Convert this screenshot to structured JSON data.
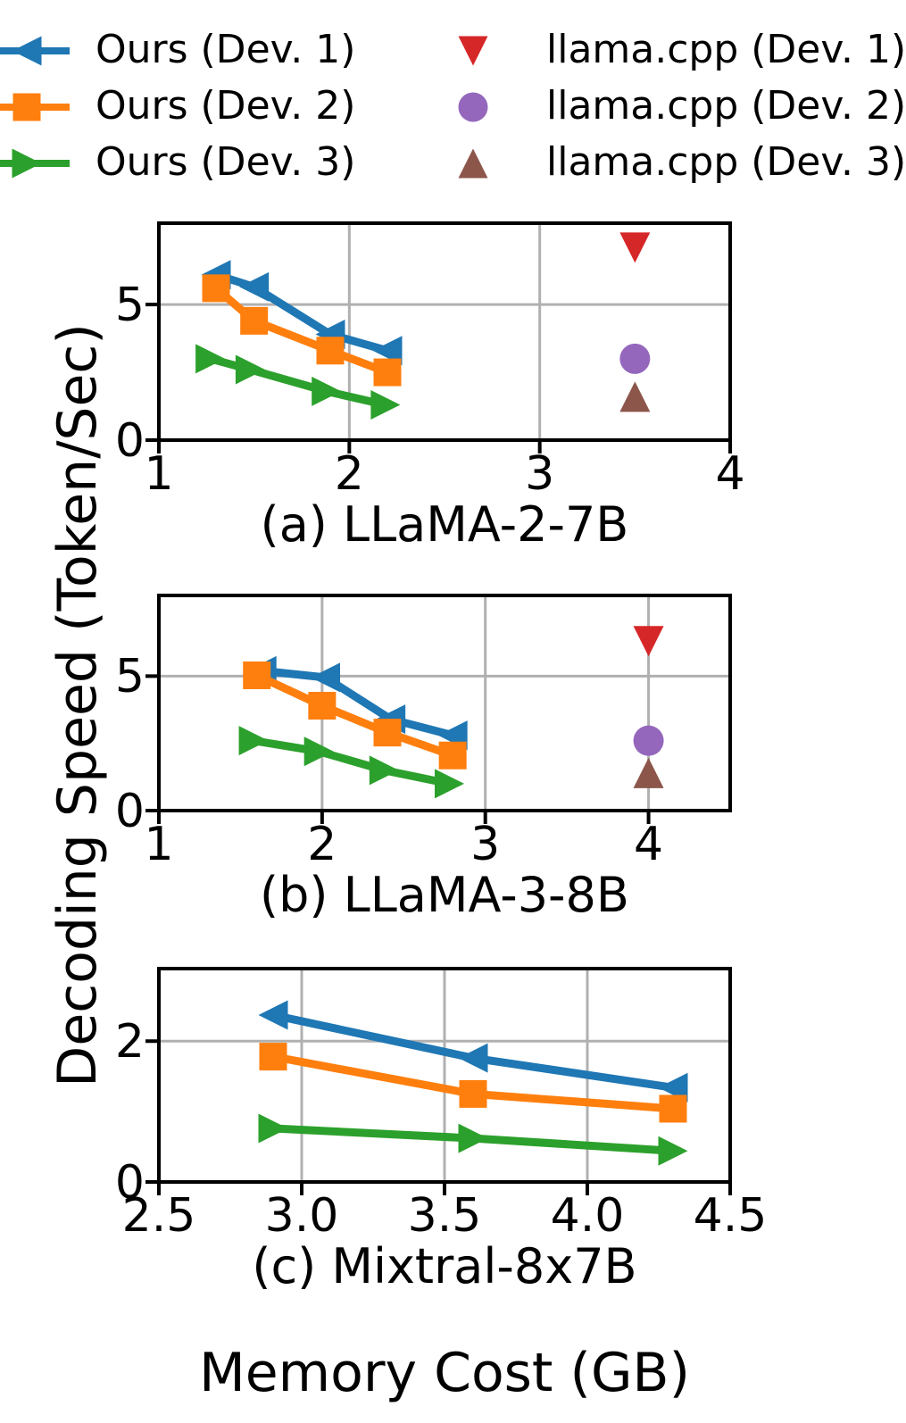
{
  "colors": {
    "blue": "#1f77b4",
    "orange": "#ff7f0e",
    "green": "#2ca02c",
    "red": "#d62728",
    "purple": "#9467bd",
    "brown": "#8c564b",
    "grid": "#b0b0b0",
    "axis": "#000000"
  },
  "legend": {
    "ours": [
      {
        "label": "Ours (Dev. 1)",
        "color": "#1f77b4",
        "marker": "triangle-left"
      },
      {
        "label": "Ours (Dev. 2)",
        "color": "#ff7f0e",
        "marker": "square"
      },
      {
        "label": "Ours (Dev. 3)",
        "color": "#2ca02c",
        "marker": "triangle-right"
      }
    ],
    "llamacpp": [
      {
        "label": "llama.cpp (Dev. 1)",
        "color": "#d62728",
        "marker": "triangle-down"
      },
      {
        "label": "llama.cpp (Dev. 2)",
        "color": "#9467bd",
        "marker": "circle"
      },
      {
        "label": "llama.cpp (Dev. 3)",
        "color": "#8c564b",
        "marker": "triangle-up"
      }
    ]
  },
  "ylabel": "Decoding Speed (Token/Sec)",
  "xlabel": "Memory Cost (GB)",
  "chart_data": [
    {
      "type": "line",
      "title": "(a) LLaMA-2-7B",
      "xlabel": "Memory Cost (GB)",
      "ylabel": "Decoding Speed (Token/Sec)",
      "xlim": [
        1,
        4
      ],
      "ylim": [
        0,
        8
      ],
      "xticks": [
        1,
        2,
        3,
        4
      ],
      "xtick_labels": [
        "1",
        "2",
        "3",
        "4"
      ],
      "yticks": [
        0,
        5
      ],
      "ytick_labels": [
        "0",
        "5"
      ],
      "grid_x": [
        2,
        3
      ],
      "grid_y": [
        5
      ],
      "grid": true,
      "series": [
        {
          "name": "Ours (Dev. 1)",
          "color": "#1f77b4",
          "marker": "triangle-left",
          "points": [
            [
              1.3,
              6.1
            ],
            [
              1.5,
              5.65
            ],
            [
              1.9,
              3.9
            ],
            [
              2.2,
              3.3
            ]
          ]
        },
        {
          "name": "Ours (Dev. 2)",
          "color": "#ff7f0e",
          "marker": "square",
          "points": [
            [
              1.3,
              5.6
            ],
            [
              1.5,
              4.4
            ],
            [
              1.9,
              3.3
            ],
            [
              2.2,
              2.5
            ]
          ]
        },
        {
          "name": "Ours (Dev. 3)",
          "color": "#2ca02c",
          "marker": "triangle-right",
          "points": [
            [
              1.27,
              3.0
            ],
            [
              1.48,
              2.6
            ],
            [
              1.88,
              1.8
            ],
            [
              2.19,
              1.3
            ]
          ]
        }
      ],
      "scatter": [
        {
          "name": "llama.cpp (Dev. 1)",
          "color": "#d62728",
          "marker": "triangle-down",
          "point": [
            3.5,
            7.1
          ]
        },
        {
          "name": "llama.cpp (Dev. 2)",
          "color": "#9467bd",
          "marker": "circle",
          "point": [
            3.5,
            3.0
          ]
        },
        {
          "name": "llama.cpp (Dev. 3)",
          "color": "#8c564b",
          "marker": "triangle-up",
          "point": [
            3.5,
            1.6
          ]
        }
      ]
    },
    {
      "type": "line",
      "title": "(b) LLaMA-3-8B",
      "xlabel": "Memory Cost (GB)",
      "ylabel": "Decoding Speed (Token/Sec)",
      "xlim": [
        1,
        4.5
      ],
      "ylim": [
        0,
        8
      ],
      "xticks": [
        1,
        2,
        3,
        4
      ],
      "xtick_labels": [
        "1",
        "2",
        "3",
        "4"
      ],
      "yticks": [
        0,
        5
      ],
      "ytick_labels": [
        "0",
        "5"
      ],
      "grid_x": [
        2,
        3,
        4
      ],
      "grid_y": [
        5
      ],
      "grid": true,
      "series": [
        {
          "name": "Ours (Dev. 1)",
          "color": "#1f77b4",
          "marker": "triangle-left",
          "points": [
            [
              1.63,
              5.2
            ],
            [
              2.02,
              4.95
            ],
            [
              2.42,
              3.4
            ],
            [
              2.8,
              2.8
            ]
          ]
        },
        {
          "name": "Ours (Dev. 2)",
          "color": "#ff7f0e",
          "marker": "square",
          "points": [
            [
              1.6,
              5.03
            ],
            [
              2.0,
              3.9
            ],
            [
              2.4,
              2.9
            ],
            [
              2.8,
              2.05
            ]
          ]
        },
        {
          "name": "Ours (Dev. 3)",
          "color": "#2ca02c",
          "marker": "triangle-right",
          "points": [
            [
              1.58,
              2.6
            ],
            [
              1.98,
              2.2
            ],
            [
              2.38,
              1.5
            ],
            [
              2.78,
              1.0
            ]
          ]
        }
      ],
      "scatter": [
        {
          "name": "llama.cpp (Dev. 1)",
          "color": "#d62728",
          "marker": "triangle-down",
          "point": [
            4.0,
            6.3
          ]
        },
        {
          "name": "llama.cpp (Dev. 2)",
          "color": "#9467bd",
          "marker": "circle",
          "point": [
            4.0,
            2.6
          ]
        },
        {
          "name": "llama.cpp (Dev. 3)",
          "color": "#8c564b",
          "marker": "triangle-up",
          "point": [
            4.0,
            1.4
          ]
        }
      ]
    },
    {
      "type": "line",
      "title": "(c) Mixtral-8x7B",
      "xlabel": "Memory Cost (GB)",
      "ylabel": "Decoding Speed (Token/Sec)",
      "xlim": [
        2.5,
        4.5
      ],
      "ylim": [
        0,
        3.03
      ],
      "xticks": [
        2.5,
        3.0,
        3.5,
        4.0,
        4.5
      ],
      "xtick_labels": [
        "2.5",
        "3.0",
        "3.5",
        "4.0",
        "4.5"
      ],
      "yticks": [
        0,
        2
      ],
      "ytick_labels": [
        "0",
        "2"
      ],
      "grid_x": [
        3.0,
        3.5,
        4.0
      ],
      "grid_y": [
        2
      ],
      "grid": true,
      "series": [
        {
          "name": "Ours (Dev. 1)",
          "color": "#1f77b4",
          "marker": "triangle-left",
          "points": [
            [
              2.9,
              2.37
            ],
            [
              3.6,
              1.76
            ],
            [
              4.3,
              1.34
            ]
          ]
        },
        {
          "name": "Ours (Dev. 2)",
          "color": "#ff7f0e",
          "marker": "square",
          "points": [
            [
              2.9,
              1.78
            ],
            [
              3.6,
              1.25
            ],
            [
              4.3,
              1.04
            ]
          ]
        },
        {
          "name": "Ours (Dev. 3)",
          "color": "#2ca02c",
          "marker": "triangle-right",
          "points": [
            [
              2.9,
              0.76
            ],
            [
              3.6,
              0.62
            ],
            [
              4.3,
              0.44
            ]
          ]
        }
      ],
      "scatter": []
    }
  ]
}
